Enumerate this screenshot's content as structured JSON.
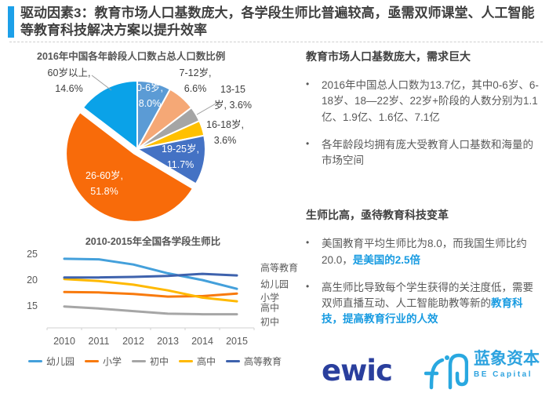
{
  "slide": {
    "title": "驱动因素3：教育市场人口基数庞大，各学段生师比普遍较高，亟需双师课堂、人工智能等教育科技解决方案以提升效率",
    "accent_color": "#1CA0E9"
  },
  "chart_data": [
    {
      "type": "pie",
      "title": "2016年中国各年龄段人口数占总人口数比例",
      "slices": [
        {
          "label": "0-6岁",
          "value": 8.0,
          "color": "#5B9BD5",
          "label_lines": [
            "0-6岁,",
            "8.0%"
          ],
          "label_inside": true
        },
        {
          "label": "7-12岁",
          "value": 6.6,
          "color": "#F5A876",
          "label_lines": [
            "7-12岁,",
            "6.6%"
          ],
          "label_inside": false
        },
        {
          "label": "13-15岁",
          "value": 3.6,
          "color": "#A5A5A5",
          "label_lines": [
            "13-15",
            "岁, 3.6%"
          ],
          "label_inside": false
        },
        {
          "label": "16-18岁",
          "value": 3.6,
          "color": "#FFC000",
          "label_lines": [
            "16-18岁,",
            "3.6%"
          ],
          "label_inside": false
        },
        {
          "label": "19-25岁",
          "value": 11.7,
          "color": "#4472C4",
          "label_lines": [
            "19-25岁,",
            "11.7%"
          ],
          "label_inside": true
        },
        {
          "label": "26-60岁",
          "value": 51.8,
          "color": "#F86B0A",
          "label_lines": [
            "26-60岁,",
            "51.8%"
          ],
          "label_inside": true,
          "exploded": true
        },
        {
          "label": "60岁以上",
          "value": 14.6,
          "color": "#0AA2E8",
          "label_lines": [
            "60岁以上,",
            "14.6%"
          ],
          "label_inside": false
        }
      ]
    },
    {
      "type": "line",
      "title": "2010-2015年全国各学段生师比",
      "categories": [
        "2010",
        "2011",
        "2012",
        "2013",
        "2014",
        "2015"
      ],
      "yticks": [
        15,
        20,
        25
      ],
      "ylim": [
        11,
        26
      ],
      "legend_position": "bottom",
      "series": [
        {
          "name": "幼儿园",
          "color": "#44A0DB",
          "values": [
            24.1,
            24.0,
            23.0,
            21.3,
            20.0,
            18.3
          ]
        },
        {
          "name": "小学",
          "color": "#F87A0D",
          "values": [
            17.7,
            17.6,
            17.3,
            16.8,
            16.9,
            17.4
          ]
        },
        {
          "name": "初中",
          "color": "#A6A6A6",
          "values": [
            14.9,
            14.5,
            14.0,
            13.5,
            13.4,
            13.4
          ]
        },
        {
          "name": "高中",
          "color": "#FFB900",
          "values": [
            20.2,
            19.8,
            19.1,
            18.0,
            16.6,
            15.9
          ]
        },
        {
          "name": "高等教育",
          "color": "#3E62AD",
          "values": [
            20.5,
            20.5,
            20.6,
            20.8,
            21.2,
            20.9
          ]
        }
      ]
    }
  ],
  "right_panel": {
    "highlight_color": "#189BE1",
    "section1": {
      "heading": "教育市场人口基数庞大，需求巨大",
      "bullets": [
        [
          {
            "text": "2016年中国总人口数为13.7亿，其中0-6岁、6-18岁、18—22岁、22岁+阶段的人数分别为1.1亿、1.9亿、1.6亿、7.1亿"
          }
        ],
        [
          {
            "text": "各年龄段均拥有庞大受教育人口基数和海量的市场空间"
          }
        ]
      ]
    },
    "section2": {
      "heading": "生师比高，亟待教育科技变革",
      "bullets": [
        [
          {
            "text": "美国教育平均生师比为8.0，而我国生师比约20.0，"
          },
          {
            "text": "是美国的2.5倍",
            "highlight": true
          }
        ],
        [
          {
            "text": "高生师比导致每个学生获得的关注度低，需要双师直播互动、人工智能助教等新的"
          },
          {
            "text": "教育科技，提高教育行业的人效",
            "highlight": true
          }
        ]
      ]
    },
    "bullet_glyph": "•"
  },
  "footer": {
    "ewic_logo_text": "ewic",
    "be_capital": {
      "cn": "蓝象资本",
      "en": "BE Capital"
    }
  }
}
